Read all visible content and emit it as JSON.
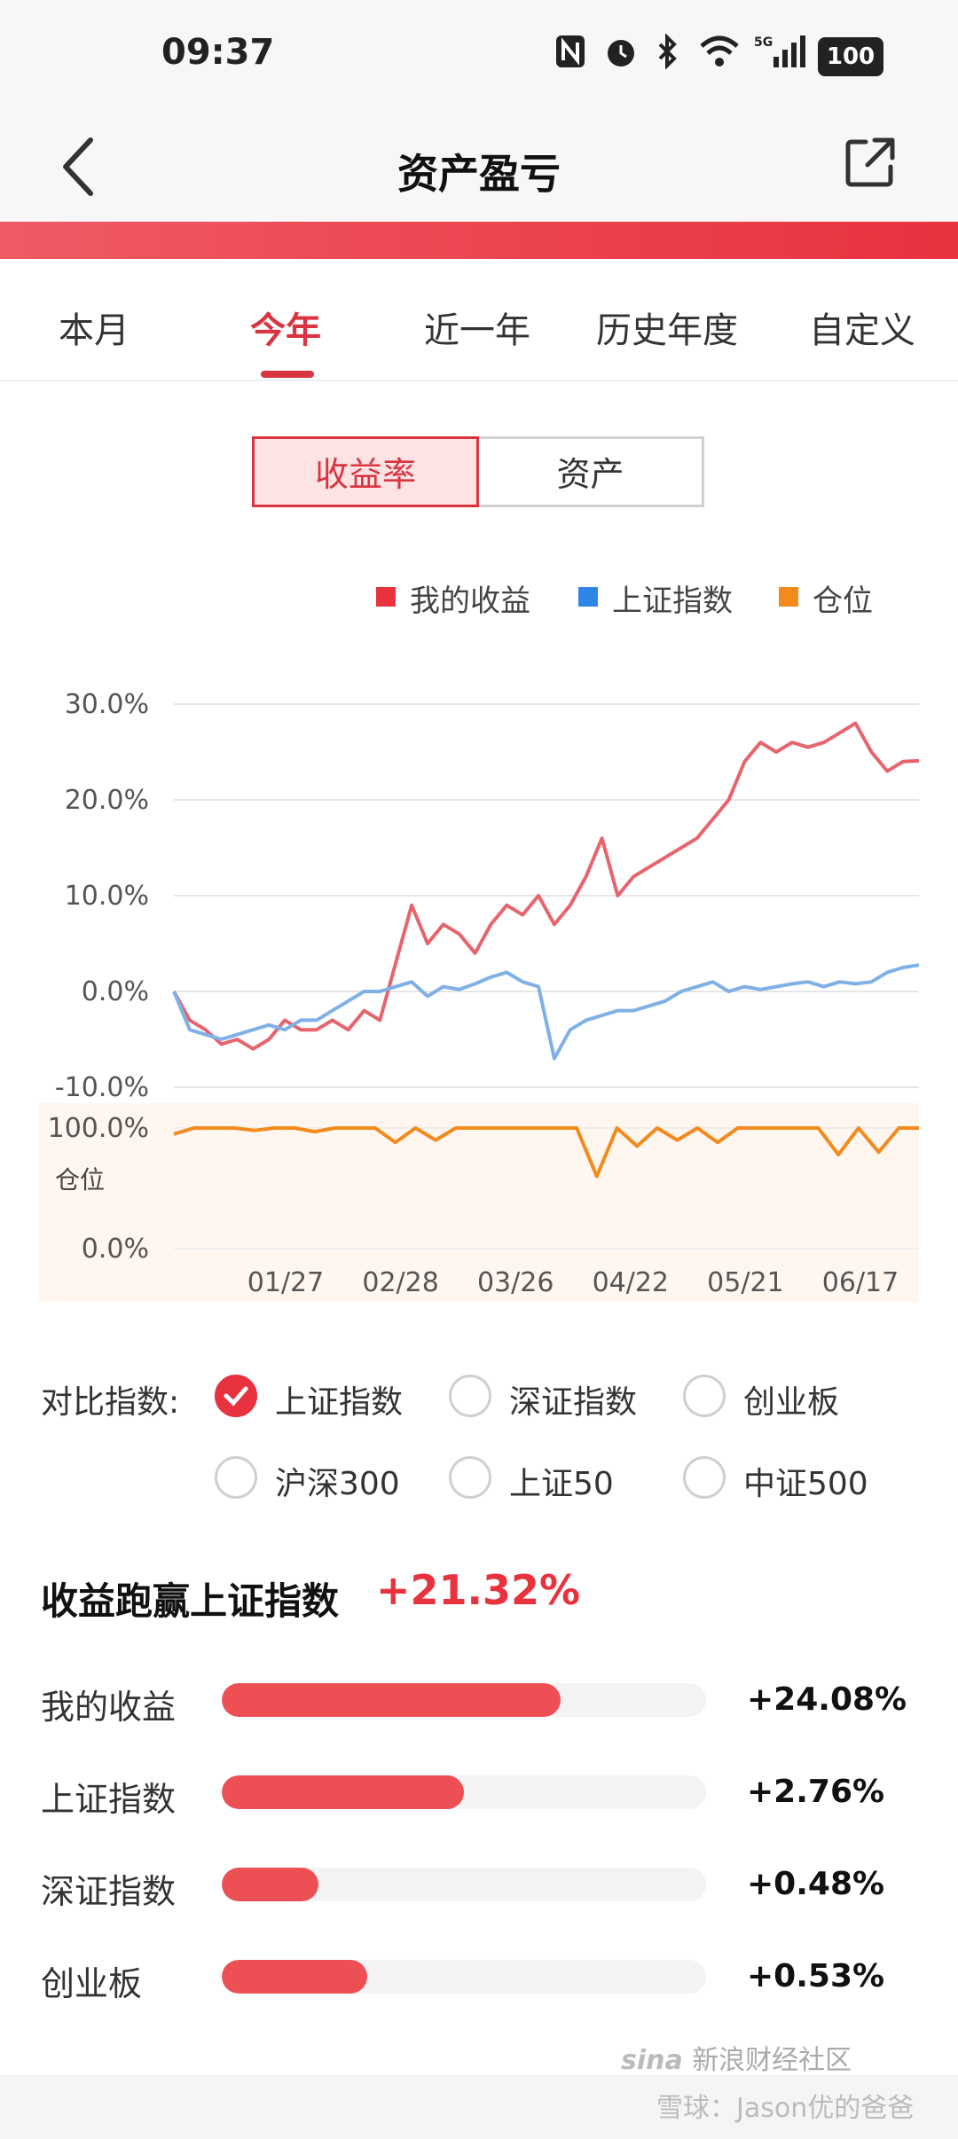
{
  "status_bar": {
    "time": "09:37",
    "battery": "100",
    "icons": [
      "nfc-icon",
      "alarm-icon",
      "bluetooth-icon",
      "wifi-icon",
      "signal-5g-icon",
      "battery-icon"
    ]
  },
  "header": {
    "title": "资产盈亏",
    "icons": [
      "back-arrow-icon",
      "share-icon"
    ]
  },
  "tabs": [
    {
      "label": "本月",
      "active": false
    },
    {
      "label": "今年",
      "active": true
    },
    {
      "label": "近一年",
      "active": false
    },
    {
      "label": "历史年度",
      "active": false
    },
    {
      "label": "自定义",
      "active": false
    }
  ],
  "segment": {
    "options": [
      "收益率",
      "资产"
    ],
    "selected": "收益率"
  },
  "colors": {
    "accent": "#e8323e",
    "my_return": "#e8646c",
    "sh_index": "#7fb0e6",
    "position": "#f28a1c"
  },
  "legend": [
    {
      "label": "我的收益",
      "color": "#e8323e"
    },
    {
      "label": "上证指数",
      "color": "#2f86e8"
    },
    {
      "label": "仓位",
      "color": "#f28a1c"
    }
  ],
  "chart_data": [
    {
      "type": "line",
      "ylim": [
        -10,
        30
      ],
      "y_ticks": [
        "30.0%",
        "20.0%",
        "10.0%",
        "0.0%",
        "-10.0%"
      ],
      "x_ticks": [
        "01/27",
        "02/28",
        "03/26",
        "04/22",
        "05/21",
        "06/17"
      ],
      "series": [
        {
          "name": "我的收益",
          "values": [
            0,
            -3,
            -4,
            -5.5,
            -5,
            -6,
            -5,
            -3,
            -4,
            -4,
            -3,
            -4,
            -2,
            -3,
            3,
            9,
            5,
            7,
            6,
            4,
            7,
            9,
            8,
            10,
            7,
            9,
            12,
            16,
            10,
            12,
            13,
            14,
            15,
            16,
            18,
            20,
            24,
            26,
            25,
            26,
            25.5,
            26,
            27,
            28,
            25,
            23,
            24,
            24.08
          ]
        },
        {
          "name": "上证指数",
          "values": [
            0,
            -4,
            -4.5,
            -5,
            -4.5,
            -4,
            -3.5,
            -4,
            -3,
            -3,
            -2,
            -1,
            0,
            0,
            0.5,
            1,
            -0.5,
            0.5,
            0.2,
            0.8,
            1.5,
            2,
            1,
            0.5,
            -7,
            -4,
            -3,
            -2.5,
            -2,
            -2,
            -1.5,
            -1,
            0,
            0.5,
            1,
            0,
            0.5,
            0.2,
            0.5,
            0.8,
            1,
            0.5,
            1,
            0.8,
            1,
            2,
            2.5,
            2.76
          ]
        }
      ]
    },
    {
      "type": "line",
      "ylabel": "仓位",
      "ylim": [
        0,
        100
      ],
      "y_ticks": [
        "100.0%",
        "0.0%"
      ],
      "series": [
        {
          "name": "仓位",
          "values": [
            95,
            100,
            100,
            100,
            98,
            100,
            100,
            97,
            100,
            100,
            100,
            88,
            100,
            90,
            100,
            100,
            100,
            100,
            100,
            100,
            100,
            60,
            100,
            85,
            100,
            90,
            100,
            88,
            100,
            100,
            100,
            100,
            100,
            78,
            100,
            80,
            100,
            100
          ]
        }
      ]
    }
  ],
  "compare": {
    "label": "对比指数:",
    "options": [
      {
        "label": "上证指数",
        "checked": true
      },
      {
        "label": "深证指数",
        "checked": false
      },
      {
        "label": "创业板",
        "checked": false
      },
      {
        "label": "沪深300",
        "checked": false
      },
      {
        "label": "上证50",
        "checked": false
      },
      {
        "label": "中证500",
        "checked": false
      }
    ]
  },
  "summary": {
    "title": "收益跑赢上证指数",
    "value": "+21.32%",
    "rows": [
      {
        "label": "我的收益",
        "value": "+24.08%",
        "fill": 0.7
      },
      {
        "label": "上证指数",
        "value": "+2.76%",
        "fill": 0.5
      },
      {
        "label": "深证指数",
        "value": "+0.48%",
        "fill": 0.2
      },
      {
        "label": "创业板",
        "value": "+0.53%",
        "fill": 0.3
      }
    ]
  },
  "watermark": {
    "line1": "新浪财经社区",
    "line2": "雪球：Jason优的爸爸"
  }
}
